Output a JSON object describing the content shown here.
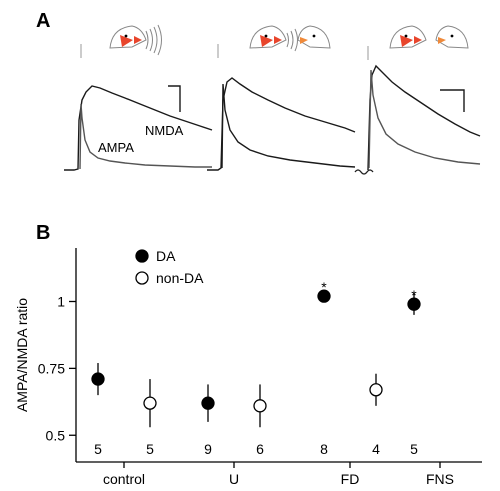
{
  "panel_a": {
    "letter": "A",
    "trace_labels": {
      "nmda": "NMDA",
      "ampa": "AMPA"
    }
  },
  "panel_b": {
    "letter": "B"
  },
  "colors": {
    "dot_filled": "#000000",
    "dot_open": "#ffffff",
    "bird_red": "#e8452c",
    "bird_orange": "#f08a3a"
  },
  "chart_data": {
    "type": "scatter",
    "title": "",
    "xlabel": "",
    "ylabel": "AMPA/NMDA ratio",
    "categories": [
      "control",
      "U",
      "FD",
      "FNS"
    ],
    "ylim": [
      0.4,
      1.2
    ],
    "yticks": [
      "0.5",
      "0.75",
      "1"
    ],
    "ytick_values": [
      0.5,
      0.75,
      1.0
    ],
    "legend_position": "top-left",
    "series": [
      {
        "name": "DA",
        "filled": true,
        "values": [
          0.71,
          0.62,
          1.02,
          0.99
        ],
        "err": [
          0.06,
          0.07,
          0.02,
          0.04
        ],
        "n": [
          "5",
          "9",
          "8",
          "5"
        ],
        "significance": [
          "",
          "",
          "*",
          "*"
        ]
      },
      {
        "name": "non-DA",
        "filled": false,
        "values": [
          0.62,
          0.61,
          0.67,
          null
        ],
        "err": [
          0.09,
          0.08,
          0.06,
          null
        ],
        "n": [
          "5",
          "6",
          "4",
          ""
        ],
        "significance": [
          "",
          "",
          "",
          ""
        ]
      }
    ]
  }
}
